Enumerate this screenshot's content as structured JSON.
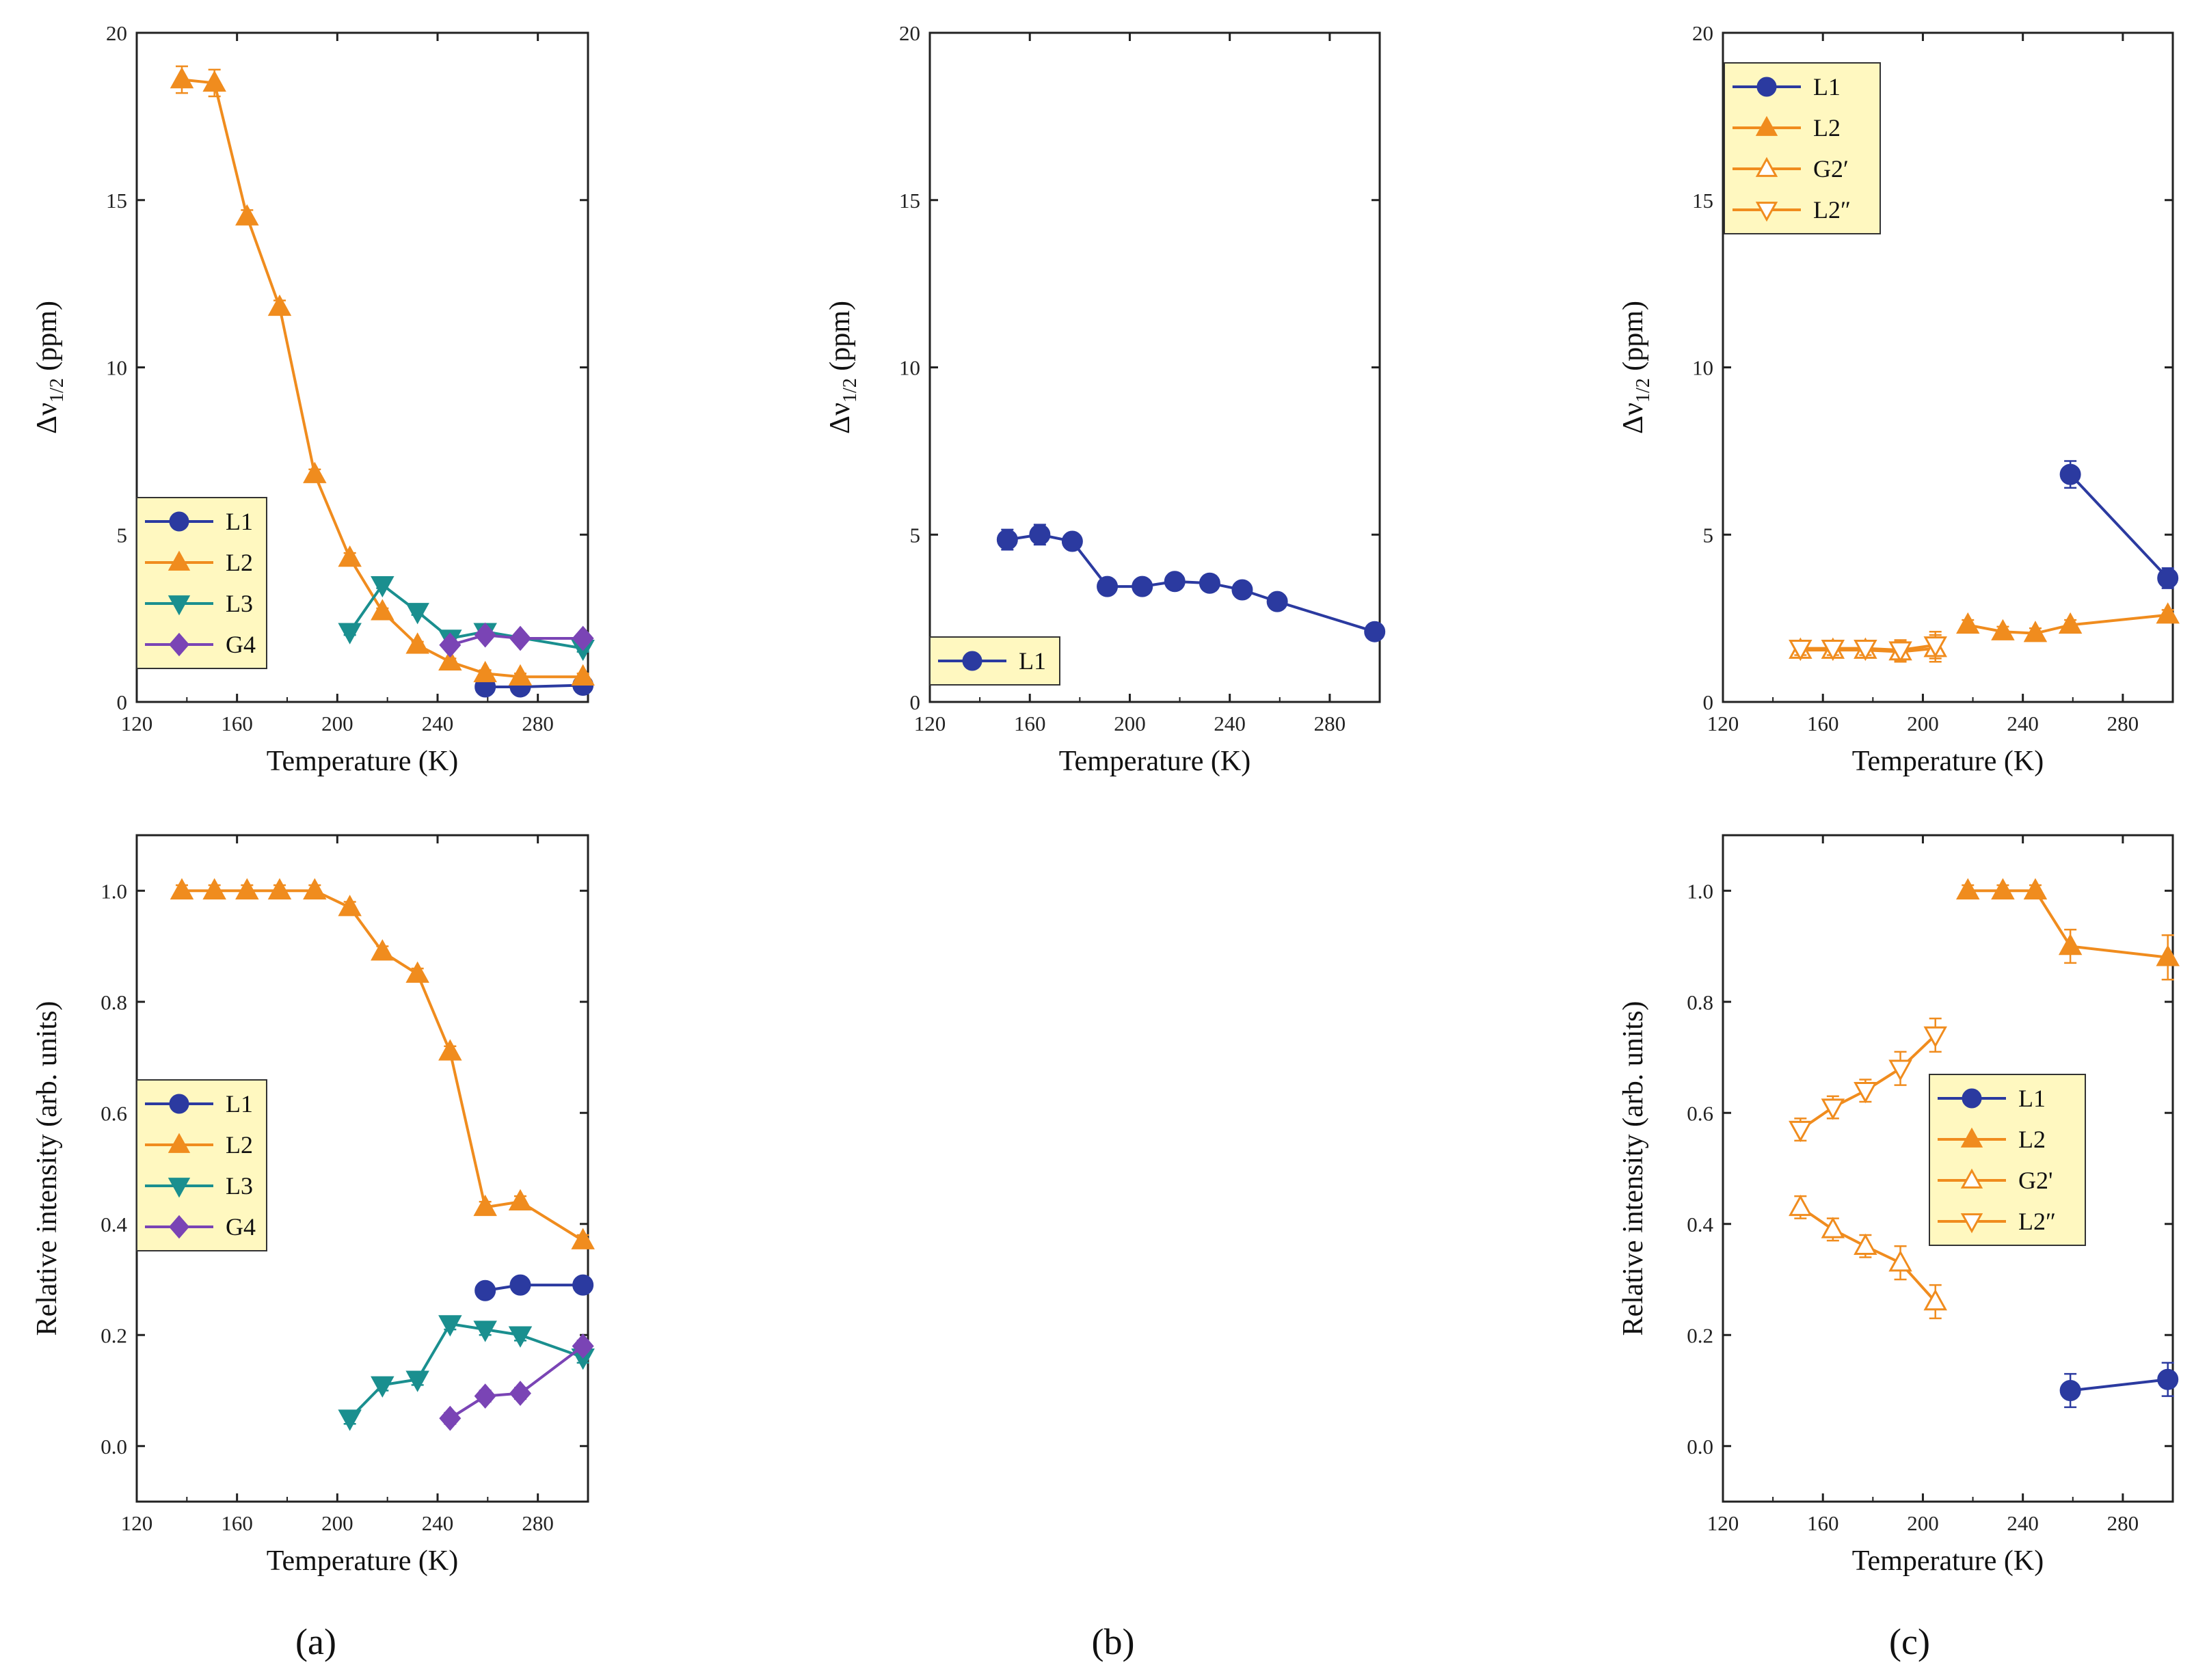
{
  "colors": {
    "L1": "#2b3aa0",
    "L2": "#f08c1e",
    "L3": "#1a8f8f",
    "G4": "#7a44b5",
    "legend_bg": "#fff8c0"
  },
  "chart_data": [
    {
      "panel": "a-top",
      "type": "line",
      "title": "",
      "sublabel": "",
      "xlabel": "Temperature (K)",
      "ylabel_main": "Δν",
      "ylabel_sub": "1/2",
      "ylabel_unit": " (ppm)",
      "xlim": [
        120,
        300
      ],
      "ylim": [
        0,
        20
      ],
      "xticks": [
        "120",
        "160",
        "200",
        "240",
        "280"
      ],
      "yticks": [
        "0",
        "5",
        "10",
        "15",
        "20"
      ],
      "legend_position": "middle-left",
      "series": [
        {
          "name": "L1",
          "marker": "circle",
          "fill": true,
          "x": [
            259,
            273,
            298
          ],
          "y": [
            0.45,
            0.45,
            0.5
          ],
          "err": [
            0.1,
            0.1,
            0.1
          ]
        },
        {
          "name": "L2",
          "marker": "triangle-up",
          "fill": true,
          "x": [
            138,
            151,
            164,
            177,
            191,
            205,
            218,
            232,
            245,
            259,
            273,
            298
          ],
          "y": [
            18.6,
            18.5,
            14.5,
            11.8,
            6.8,
            4.3,
            2.7,
            1.7,
            1.2,
            0.85,
            0.75,
            0.75
          ],
          "err": [
            0.4,
            0.4,
            0.2,
            0.2,
            0.15,
            0.15,
            0.1,
            0.1,
            0.1,
            0.1,
            0.1,
            0.1
          ]
        },
        {
          "name": "L3",
          "marker": "triangle-down",
          "fill": true,
          "x": [
            205,
            218,
            232,
            245,
            259,
            298
          ],
          "y": [
            2.1,
            3.5,
            2.7,
            1.9,
            2.1,
            1.6
          ],
          "err": [
            0.1,
            0.1,
            0.1,
            0.1,
            0.1,
            0.1
          ]
        },
        {
          "name": "G4",
          "marker": "diamond",
          "fill": true,
          "x": [
            245,
            259,
            273,
            298
          ],
          "y": [
            1.7,
            2.0,
            1.9,
            1.9
          ],
          "err": [
            0.1,
            0.1,
            0.1,
            0.1
          ]
        }
      ]
    },
    {
      "panel": "a-bottom",
      "type": "line",
      "title": "",
      "sublabel": "(a)",
      "xlabel": "Temperature (K)",
      "ylabel_main": "Relative intensity (arb. units)",
      "ylabel_sub": "",
      "ylabel_unit": "",
      "xlim": [
        120,
        300
      ],
      "ylim": [
        -0.1,
        1.1
      ],
      "xticks": [
        "120",
        "160",
        "200",
        "240",
        "280"
      ],
      "yticks": [
        "0.0",
        "0.2",
        "0.4",
        "0.6",
        "0.8",
        "1.0"
      ],
      "legend_position": "middle-left",
      "series": [
        {
          "name": "L1",
          "marker": "circle",
          "fill": true,
          "x": [
            259,
            273,
            298
          ],
          "y": [
            0.28,
            0.29,
            0.29
          ],
          "err": [
            0.01,
            0.01,
            0.01
          ]
        },
        {
          "name": "L2",
          "marker": "triangle-up",
          "fill": true,
          "x": [
            138,
            151,
            164,
            177,
            191,
            205,
            218,
            232,
            245,
            259,
            273,
            298
          ],
          "y": [
            1.0,
            1.0,
            1.0,
            1.0,
            1.0,
            0.97,
            0.89,
            0.85,
            0.71,
            0.43,
            0.44,
            0.37
          ],
          "err": [
            0.01,
            0.01,
            0.01,
            0.01,
            0.01,
            0.01,
            0.01,
            0.01,
            0.01,
            0.01,
            0.01,
            0.01
          ]
        },
        {
          "name": "L3",
          "marker": "triangle-down",
          "fill": true,
          "x": [
            205,
            218,
            232,
            245,
            259,
            273,
            298
          ],
          "y": [
            0.05,
            0.11,
            0.12,
            0.22,
            0.21,
            0.2,
            0.16
          ],
          "err": [
            0.01,
            0.01,
            0.01,
            0.01,
            0.01,
            0.01,
            0.01
          ]
        },
        {
          "name": "G4",
          "marker": "diamond",
          "fill": true,
          "x": [
            245,
            259,
            273,
            298
          ],
          "y": [
            0.05,
            0.09,
            0.095,
            0.18
          ],
          "err": [
            0.01,
            0.01,
            0.01,
            0.01
          ]
        }
      ]
    },
    {
      "panel": "b",
      "type": "line",
      "title": "",
      "sublabel": "(b)",
      "xlabel": "Temperature (K)",
      "ylabel_main": "Δν",
      "ylabel_sub": "1/2",
      "ylabel_unit": " (ppm)",
      "xlim": [
        120,
        300
      ],
      "ylim": [
        0,
        20
      ],
      "xticks": [
        "120",
        "160",
        "200",
        "240",
        "280"
      ],
      "yticks": [
        "0",
        "5",
        "10",
        "15",
        "20"
      ],
      "legend_position": "bottom-left",
      "series": [
        {
          "name": "L1",
          "marker": "circle",
          "fill": true,
          "x": [
            151,
            164,
            177,
            191,
            205,
            218,
            232,
            245,
            259,
            298
          ],
          "y": [
            4.85,
            5.0,
            4.8,
            3.45,
            3.45,
            3.6,
            3.55,
            3.35,
            3.0,
            2.1
          ],
          "err": [
            0.3,
            0.3,
            0.15,
            0.1,
            0.1,
            0.1,
            0.1,
            0.1,
            0.1,
            0.1
          ]
        }
      ]
    },
    {
      "panel": "c-top",
      "type": "line",
      "title": "",
      "sublabel": "",
      "xlabel": "Temperature (K)",
      "ylabel_main": "Δν",
      "ylabel_sub": "1/2",
      "ylabel_unit": " (ppm)",
      "xlim": [
        120,
        300
      ],
      "ylim": [
        0,
        20
      ],
      "xticks": [
        "120",
        "160",
        "200",
        "240",
        "280"
      ],
      "yticks": [
        "0",
        "5",
        "10",
        "15",
        "20"
      ],
      "legend_position": "top-left",
      "series": [
        {
          "name": "L1",
          "marker": "circle",
          "fill": true,
          "x": [
            259,
            298
          ],
          "y": [
            6.8,
            3.7
          ],
          "err": [
            0.4,
            0.3
          ]
        },
        {
          "name": "L2",
          "marker": "triangle-up",
          "fill": true,
          "x": [
            218,
            232,
            245,
            259,
            298
          ],
          "y": [
            2.3,
            2.1,
            2.05,
            2.3,
            2.6
          ],
          "err": [
            0.15,
            0.15,
            0.15,
            0.15,
            0.15
          ]
        },
        {
          "name": "G2′",
          "marker": "triangle-up",
          "fill": false,
          "x": [
            151,
            164,
            177,
            191,
            205
          ],
          "y": [
            1.55,
            1.55,
            1.55,
            1.5,
            1.6
          ],
          "err": [
            0.2,
            0.2,
            0.2,
            0.3,
            0.4
          ]
        },
        {
          "name": "L2″",
          "marker": "triangle-down",
          "fill": false,
          "x": [
            151,
            164,
            177,
            191,
            205
          ],
          "y": [
            1.6,
            1.6,
            1.6,
            1.55,
            1.7
          ],
          "err": [
            0.2,
            0.2,
            0.2,
            0.3,
            0.4
          ]
        }
      ]
    },
    {
      "panel": "c-bottom",
      "type": "line",
      "title": "",
      "sublabel": "(c)",
      "xlabel": "Temperature (K)",
      "ylabel_main": "Relative intensity (arb. units)",
      "ylabel_sub": "",
      "ylabel_unit": "",
      "xlim": [
        120,
        300
      ],
      "ylim": [
        -0.1,
        1.1
      ],
      "xticks": [
        "120",
        "160",
        "200",
        "240",
        "280"
      ],
      "yticks": [
        "0.0",
        "0.2",
        "0.4",
        "0.6",
        "0.8",
        "1.0"
      ],
      "legend_position": "middle-left",
      "series": [
        {
          "name": "L1",
          "marker": "circle",
          "fill": true,
          "x": [
            259,
            298
          ],
          "y": [
            0.1,
            0.12
          ],
          "err": [
            0.03,
            0.03
          ]
        },
        {
          "name": "L2",
          "marker": "triangle-up",
          "fill": true,
          "x": [
            218,
            232,
            245,
            259,
            298
          ],
          "y": [
            1.0,
            1.0,
            1.0,
            0.9,
            0.88
          ],
          "err": [
            0.01,
            0.01,
            0.01,
            0.03,
            0.04
          ]
        },
        {
          "name": "G2'",
          "marker": "triangle-up",
          "fill": false,
          "x": [
            151,
            164,
            177,
            191,
            205
          ],
          "y": [
            0.43,
            0.39,
            0.36,
            0.33,
            0.26
          ],
          "err": [
            0.02,
            0.02,
            0.02,
            0.03,
            0.03
          ]
        },
        {
          "name": "L2″",
          "marker": "triangle-down",
          "fill": false,
          "x": [
            151,
            164,
            177,
            191,
            205
          ],
          "y": [
            0.57,
            0.61,
            0.64,
            0.68,
            0.74
          ],
          "err": [
            0.02,
            0.02,
            0.02,
            0.03,
            0.03
          ]
        }
      ]
    }
  ]
}
